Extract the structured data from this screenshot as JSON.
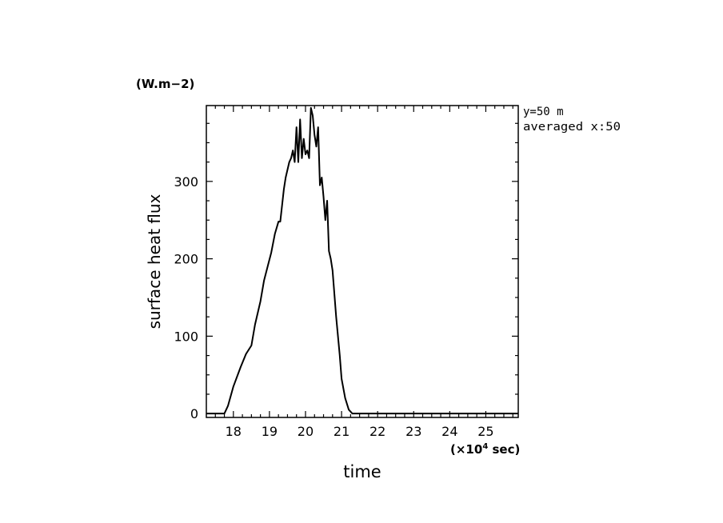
{
  "chart_data": {
    "type": "line",
    "title": "",
    "xlabel": "time",
    "ylabel": "surface heat flux",
    "y_unit": "(W.m−2)",
    "x_unit_prefix": "(×10",
    "x_unit_exponent": "4",
    "x_unit_suffix": " sec)",
    "annotation_line1": "y=50 m",
    "annotation_line2": "averaged  x:50",
    "xlim": [
      17.25,
      25.9
    ],
    "ylim": [
      -5,
      398
    ],
    "x_ticks": [
      "18",
      "19",
      "20",
      "21",
      "22",
      "23",
      "24",
      "25"
    ],
    "y_ticks": [
      "0",
      "100",
      "200",
      "300"
    ],
    "series": [
      {
        "x": [
          17.25,
          17.75,
          17.85,
          18.0,
          18.2,
          18.35,
          18.5,
          18.6,
          18.75,
          18.85,
          18.95,
          19.05,
          19.15,
          19.25,
          19.3,
          19.4,
          19.45,
          19.55,
          19.6,
          19.65,
          19.7,
          19.75,
          19.8,
          19.85,
          19.9,
          19.95,
          20.0,
          20.05,
          20.1,
          20.15,
          20.2,
          20.25,
          20.3,
          20.35,
          20.4,
          20.45,
          20.5,
          20.55,
          20.6,
          20.65,
          20.7,
          20.75,
          20.8,
          20.85,
          20.9,
          20.95,
          21.0,
          21.1,
          21.2,
          21.3,
          21.4,
          21.5,
          21.55,
          21.6,
          25.9
        ],
        "y": [
          0,
          0,
          10,
          35,
          60,
          77,
          88,
          115,
          145,
          172,
          190,
          208,
          232,
          248,
          248,
          290,
          305,
          325,
          330,
          340,
          325,
          370,
          325,
          380,
          330,
          355,
          335,
          340,
          330,
          395,
          385,
          360,
          345,
          370,
          295,
          305,
          280,
          250,
          275,
          210,
          200,
          185,
          155,
          125,
          100,
          75,
          45,
          20,
          5,
          0,
          0,
          0,
          0,
          0,
          0
        ]
      }
    ]
  }
}
